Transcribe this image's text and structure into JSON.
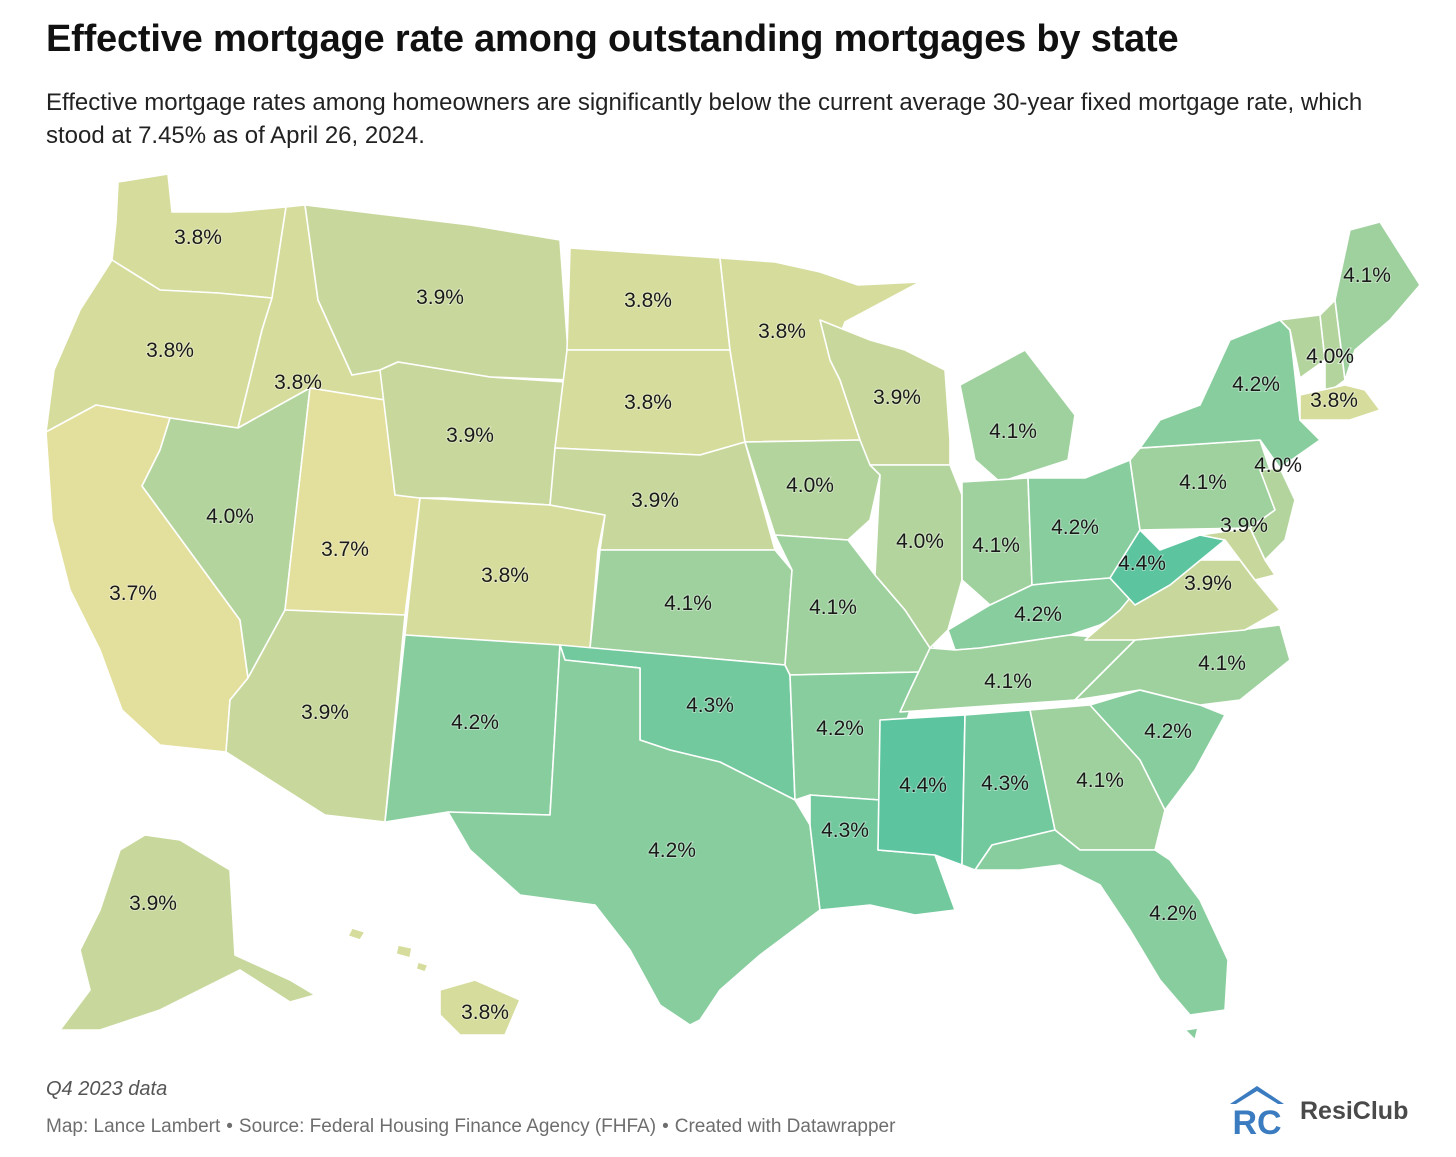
{
  "header": {
    "title": "Effective mortgage rate among outstanding mortgages by state",
    "subtitle": "Effective mortgage rates among homeowners are significantly below the current average 30-year fixed mortgage rate, which stood at 7.45% as of April 26, 2024."
  },
  "footer": {
    "note": "Q4 2023 data",
    "credit_map": "Map: Lance Lambert",
    "credit_source": "Source: Federal Housing Finance Agency (FHFA)",
    "credit_tool": "Created with Datawrapper",
    "separator": "•",
    "logo_text": "ResiClub",
    "logo_mark": "RC"
  },
  "legend_scale": {
    "min_value": 3.7,
    "max_value": 4.4,
    "color_low": "#e3df9c",
    "color_mid": "#c7d89c",
    "color_high": "#5cc59f"
  },
  "map_data": {
    "type": "choropleth",
    "region": "United States",
    "unit": "%",
    "states": [
      {
        "state": "WA",
        "value": 3.8,
        "label": "3.8%"
      },
      {
        "state": "OR",
        "value": 3.8,
        "label": "3.8%"
      },
      {
        "state": "CA",
        "value": 3.7,
        "label": "3.7%"
      },
      {
        "state": "ID",
        "value": 3.8,
        "label": "3.8%"
      },
      {
        "state": "NV",
        "value": 4.0,
        "label": "4.0%"
      },
      {
        "state": "UT",
        "value": 3.7,
        "label": "3.7%"
      },
      {
        "state": "AZ",
        "value": 3.9,
        "label": "3.9%"
      },
      {
        "state": "MT",
        "value": 3.9,
        "label": "3.9%"
      },
      {
        "state": "WY",
        "value": 3.9,
        "label": "3.9%"
      },
      {
        "state": "CO",
        "value": 3.8,
        "label": "3.8%"
      },
      {
        "state": "NM",
        "value": 4.2,
        "label": "4.2%"
      },
      {
        "state": "ND",
        "value": 3.8,
        "label": "3.8%"
      },
      {
        "state": "SD",
        "value": 3.8,
        "label": "3.8%"
      },
      {
        "state": "NE",
        "value": 3.9,
        "label": "3.9%"
      },
      {
        "state": "KS",
        "value": 4.1,
        "label": "4.1%"
      },
      {
        "state": "OK",
        "value": 4.3,
        "label": "4.3%"
      },
      {
        "state": "TX",
        "value": 4.2,
        "label": "4.2%"
      },
      {
        "state": "MN",
        "value": 3.8,
        "label": "3.8%"
      },
      {
        "state": "IA",
        "value": 4.0,
        "label": "4.0%"
      },
      {
        "state": "MO",
        "value": 4.1,
        "label": "4.1%"
      },
      {
        "state": "AR",
        "value": 4.2,
        "label": "4.2%"
      },
      {
        "state": "LA",
        "value": 4.3,
        "label": "4.3%"
      },
      {
        "state": "WI",
        "value": 3.9,
        "label": "3.9%"
      },
      {
        "state": "IL",
        "value": 4.0,
        "label": "4.0%"
      },
      {
        "state": "MI",
        "value": 4.1,
        "label": "4.1%"
      },
      {
        "state": "IN",
        "value": 4.1,
        "label": "4.1%"
      },
      {
        "state": "OH",
        "value": 4.2,
        "label": "4.2%"
      },
      {
        "state": "KY",
        "value": 4.2,
        "label": "4.2%"
      },
      {
        "state": "TN",
        "value": 4.1,
        "label": "4.1%"
      },
      {
        "state": "MS",
        "value": 4.4,
        "label": "4.4%"
      },
      {
        "state": "AL",
        "value": 4.3,
        "label": "4.3%"
      },
      {
        "state": "GA",
        "value": 4.1,
        "label": "4.1%"
      },
      {
        "state": "FL",
        "value": 4.2,
        "label": "4.2%"
      },
      {
        "state": "SC",
        "value": 4.2,
        "label": "4.2%"
      },
      {
        "state": "NC",
        "value": 4.1,
        "label": "4.1%"
      },
      {
        "state": "VA",
        "value": 3.9,
        "label": "3.9%"
      },
      {
        "state": "WV",
        "value": 4.4,
        "label": "4.4%"
      },
      {
        "state": "PA",
        "value": 4.1,
        "label": "4.1%"
      },
      {
        "state": "NY",
        "value": 4.2,
        "label": "4.2%"
      },
      {
        "state": "NJ",
        "value": 4.0,
        "label": "4.0%"
      },
      {
        "state": "MD",
        "value": 3.9,
        "label": "3.9%"
      },
      {
        "state": "VT",
        "value": 4.0,
        "label": "4.0%"
      },
      {
        "state": "NH",
        "value": 4.0,
        "label": "4.0%"
      },
      {
        "state": "MA",
        "value": 3.8,
        "label": "3.8%"
      },
      {
        "state": "ME",
        "value": 4.1,
        "label": "4.1%"
      },
      {
        "state": "AK",
        "value": 3.9,
        "label": "3.9%"
      },
      {
        "state": "HI",
        "value": 3.8,
        "label": "3.8%"
      }
    ]
  }
}
